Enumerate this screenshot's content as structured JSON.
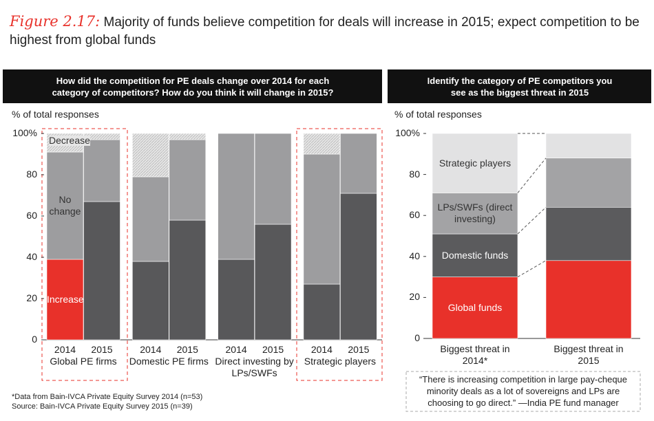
{
  "figure_label": "Figure 2.17:",
  "title": "Majority of funds believe competition for deals will increase in 2015; expect competition to be highest from global funds",
  "chart_data": [
    {
      "type": "stacked_bar",
      "header": "How did the competition for PE deals change over 2014 for each category of competitors? How do you think it will change in 2015?",
      "ylabel": "% of total responses",
      "categories": [
        "2014",
        "2015",
        "2014",
        "2015",
        "2014",
        "2015",
        "2014",
        "2015"
      ],
      "groups": [
        "Global PE firms",
        "Domestic PE firms",
        "Direct investing by LPs/SWFs",
        "Strategic players"
      ],
      "series": [
        {
          "name": "Increase",
          "colors": [
            "#e8312a",
            "#58585a",
            "#58585a",
            "#58585a",
            "#58585a",
            "#58585a",
            "#58585a",
            "#58585a"
          ],
          "values": [
            39,
            67,
            38,
            58,
            39,
            56,
            27,
            71
          ]
        },
        {
          "name": "No change",
          "color": "#9d9d9f",
          "values": [
            52,
            30,
            41,
            39,
            61,
            44,
            63,
            29
          ]
        },
        {
          "name": "Decrease",
          "color": "#cfcfd0",
          "hatch": true,
          "values": [
            9,
            3,
            21,
            3,
            0,
            0,
            10,
            0
          ]
        }
      ],
      "ylim": [
        0,
        100
      ],
      "yticks": [
        0,
        20,
        40,
        60,
        80,
        {
          "value": 100,
          "label": "100%"
        }
      ]
    },
    {
      "type": "stacked_bar",
      "header": "Identify the category of PE competitors you see as the biggest threat in 2015",
      "ylabel": "% of total responses",
      "categories": [
        "Biggest threat in 2014*",
        "Biggest threat in 2015"
      ],
      "series": [
        {
          "name": "Global funds",
          "color": "#e8312a",
          "values": [
            30,
            38
          ]
        },
        {
          "name": "Domestic funds",
          "color": "#5b5b5d",
          "values": [
            21,
            26
          ]
        },
        {
          "name": "LPs/SWFs (direct investing)",
          "color": "#a3a3a5",
          "values": [
            20,
            24
          ]
        },
        {
          "name": "Strategic players",
          "color": "#e2e2e3",
          "values": [
            29,
            12
          ]
        }
      ],
      "ylim": [
        0,
        100
      ],
      "yticks": [
        0,
        20,
        40,
        60,
        80,
        {
          "value": 100,
          "label": "100%"
        }
      ]
    }
  ],
  "footnotes": [
    "*Data from Bain-IVCA Private Equity Survey 2014 (n=53)",
    "Source: Bain-IVCA Private Equity Survey 2015 (n=39)"
  ],
  "quote": "“There is increasing competition in large pay-cheque minority deals as a lot of sovereigns and LPs are choosing to go direct.” —India PE fund manager"
}
